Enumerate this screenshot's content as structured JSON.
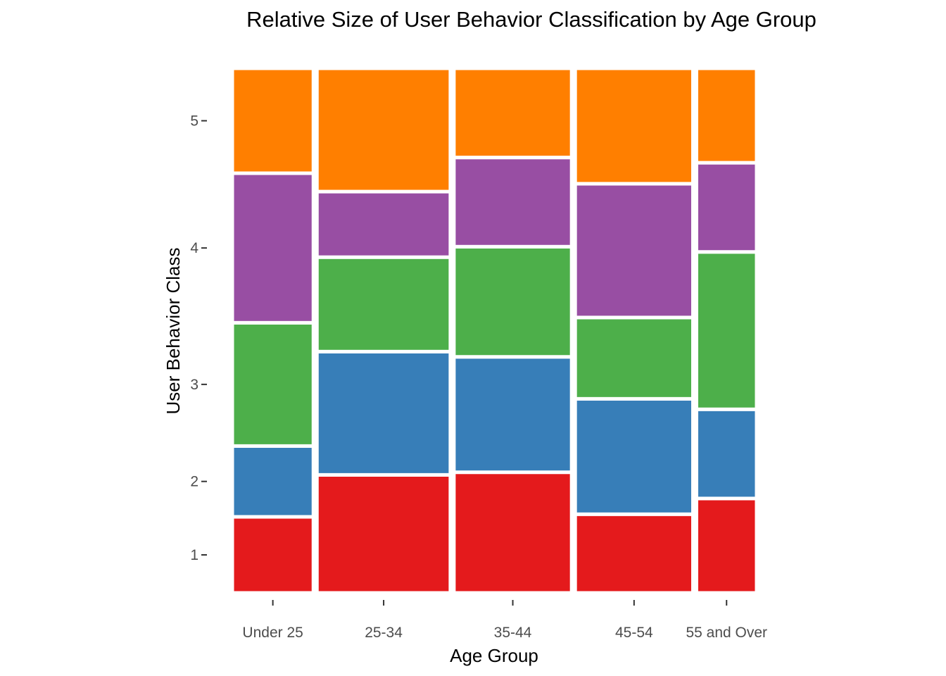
{
  "chart_data": {
    "type": "mosaic",
    "title": "Relative Size of User Behavior Classification by Age Group",
    "xlabel": "Age Group",
    "ylabel": "User Behavior Class",
    "x_categories": [
      "Under 25",
      "25-34",
      "35-44",
      "45-54",
      "55 and Over"
    ],
    "x_widths": [
      0.155,
      0.255,
      0.225,
      0.225,
      0.115
    ],
    "y_ticks": [
      1,
      2,
      3,
      4,
      5
    ],
    "segment_colors": [
      "#e41a1c",
      "#377eb8",
      "#4daf4a",
      "#984ea3",
      "#ff7f00"
    ],
    "legend": "none",
    "grid": false,
    "columns": [
      {
        "category": "Under 25",
        "values": [
          0.145,
          0.135,
          0.235,
          0.285,
          0.2
        ]
      },
      {
        "category": "25-34",
        "values": [
          0.225,
          0.235,
          0.18,
          0.125,
          0.235
        ]
      },
      {
        "category": "35-44",
        "values": [
          0.23,
          0.22,
          0.21,
          0.17,
          0.17
        ]
      },
      {
        "category": "45-54",
        "values": [
          0.15,
          0.22,
          0.155,
          0.255,
          0.22
        ]
      },
      {
        "category": "55 and Over",
        "values": [
          0.18,
          0.17,
          0.3,
          0.17,
          0.18
        ]
      }
    ]
  }
}
